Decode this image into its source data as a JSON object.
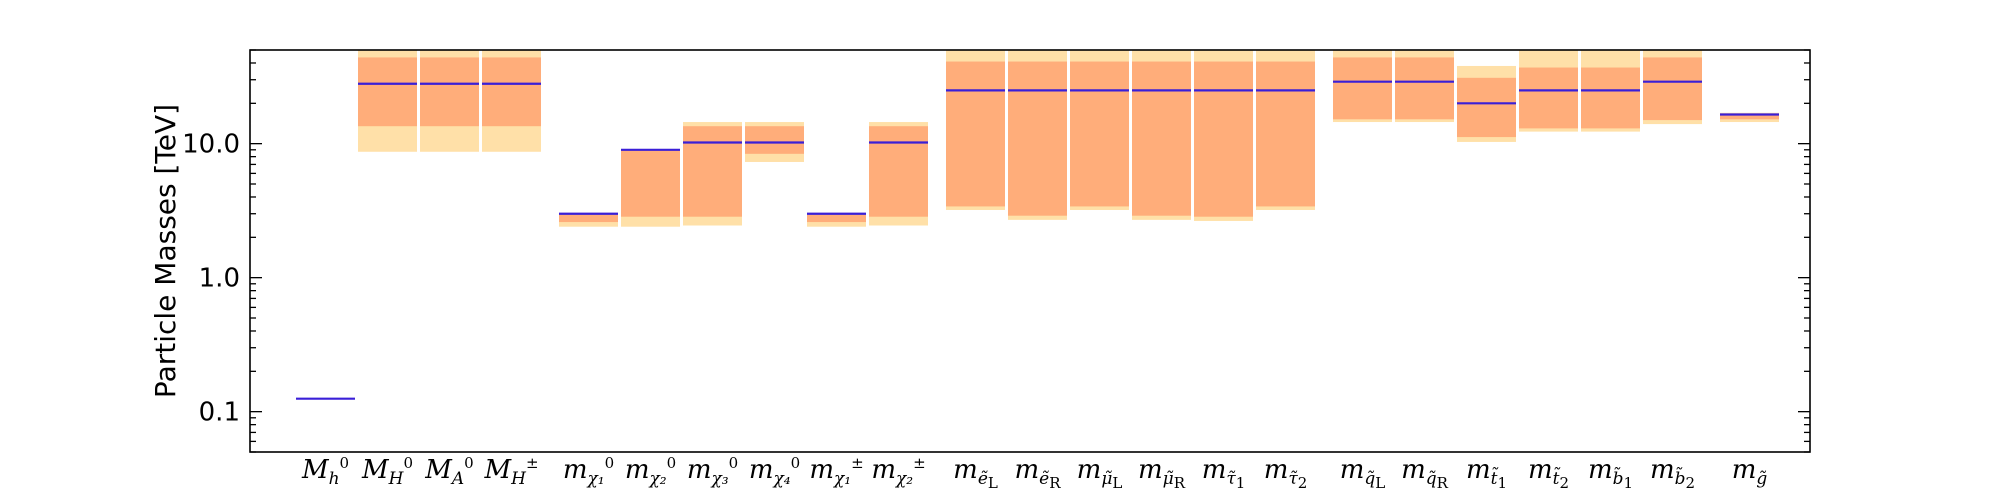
{
  "chart_data": {
    "type": "bar",
    "ylabel": "Particle Masses [TeV]",
    "yscale": "log",
    "ylim": [
      0.05,
      50
    ],
    "yticks": [
      {
        "value": 0.1,
        "label": "0.1"
      },
      {
        "value": 1.0,
        "label": "1.0"
      },
      {
        "value": 10.0,
        "label": "10.0"
      }
    ],
    "grid": false,
    "colors": {
      "outer_band": "#ffe0a8",
      "inner_band": "#ffad7a",
      "central_line": "#3a1fd8",
      "axis": "#000000"
    },
    "categories": [
      {
        "label": {
          "main": "M",
          "sub": "h",
          "sup": "0"
        },
        "group": 0,
        "outer": null,
        "inner": null,
        "central": 0.125
      },
      {
        "label": {
          "main": "M",
          "sub": "H",
          "sup": "0"
        },
        "group": 0,
        "outer": [
          8.7,
          50
        ],
        "inner": [
          13.5,
          44
        ],
        "central": 28
      },
      {
        "label": {
          "main": "M",
          "sub": "A",
          "sup": "0"
        },
        "group": 0,
        "outer": [
          8.7,
          50
        ],
        "inner": [
          13.5,
          44
        ],
        "central": 28
      },
      {
        "label": {
          "main": "M",
          "sub": "H",
          "sup": "±"
        },
        "group": 0,
        "outer": [
          8.7,
          50
        ],
        "inner": [
          13.5,
          44
        ],
        "central": 28
      },
      {
        "label": {
          "main": "m",
          "sub": "χ₁",
          "sup": "0"
        },
        "group": 1,
        "outer": [
          2.4,
          3.05
        ],
        "inner": [
          2.6,
          2.95
        ],
        "central": 3.0
      },
      {
        "label": {
          "main": "m",
          "sub": "χ₂",
          "sup": "0"
        },
        "group": 1,
        "outer": [
          2.4,
          9.1
        ],
        "inner": [
          2.85,
          9.0
        ],
        "central": 9.0
      },
      {
        "label": {
          "main": "m",
          "sub": "χ₃",
          "sup": "0"
        },
        "group": 1,
        "outer": [
          2.45,
          14.5
        ],
        "inner": [
          2.85,
          13.5
        ],
        "central": 10.2
      },
      {
        "label": {
          "main": "m",
          "sub": "χ₄",
          "sup": "0"
        },
        "group": 1,
        "outer": [
          7.3,
          14.5
        ],
        "inner": [
          8.4,
          13.5
        ],
        "central": 10.2
      },
      {
        "label": {
          "main": "m",
          "sub": "χ₁",
          "sup": "±"
        },
        "group": 1,
        "outer": [
          2.4,
          3.05
        ],
        "inner": [
          2.6,
          2.95
        ],
        "central": 3.0
      },
      {
        "label": {
          "main": "m",
          "sub": "χ₂",
          "sup": "±"
        },
        "group": 1,
        "outer": [
          2.45,
          14.5
        ],
        "inner": [
          2.85,
          13.5
        ],
        "central": 10.2
      },
      {
        "label": {
          "main": "m",
          "sub": "ẽ",
          "subsub": "L"
        },
        "group": 2,
        "outer": [
          3.2,
          50
        ],
        "inner": [
          3.4,
          41
        ],
        "central": 25
      },
      {
        "label": {
          "main": "m",
          "sub": "ẽ",
          "subsub": "R"
        },
        "group": 2,
        "outer": [
          2.7,
          50
        ],
        "inner": [
          2.9,
          41
        ],
        "central": 25
      },
      {
        "label": {
          "main": "m",
          "sub": "μ̃",
          "subsub": "L"
        },
        "group": 2,
        "outer": [
          3.2,
          50
        ],
        "inner": [
          3.4,
          41
        ],
        "central": 25
      },
      {
        "label": {
          "main": "m",
          "sub": "μ̃",
          "subsub": "R"
        },
        "group": 2,
        "outer": [
          2.7,
          50
        ],
        "inner": [
          2.9,
          41
        ],
        "central": 25
      },
      {
        "label": {
          "main": "m",
          "sub": "τ̃",
          "subsub": "1"
        },
        "group": 2,
        "outer": [
          2.65,
          50
        ],
        "inner": [
          2.85,
          41
        ],
        "central": 25
      },
      {
        "label": {
          "main": "m",
          "sub": "τ̃",
          "subsub": "2"
        },
        "group": 2,
        "outer": [
          3.2,
          50
        ],
        "inner": [
          3.4,
          41
        ],
        "central": 25
      },
      {
        "label": {
          "main": "m",
          "sub": "q̃",
          "subsub": "L"
        },
        "group": 3,
        "outer": [
          14.5,
          50
        ],
        "inner": [
          15.2,
          44
        ],
        "central": 29
      },
      {
        "label": {
          "main": "m",
          "sub": "q̃",
          "subsub": "R"
        },
        "group": 3,
        "outer": [
          14.5,
          50
        ],
        "inner": [
          15.2,
          44
        ],
        "central": 29
      },
      {
        "label": {
          "main": "m",
          "sub": "t̃",
          "subsub": "1"
        },
        "group": 3,
        "outer": [
          10.3,
          38
        ],
        "inner": [
          11.2,
          31
        ],
        "central": 20
      },
      {
        "label": {
          "main": "m",
          "sub": "t̃",
          "subsub": "2"
        },
        "group": 3,
        "outer": [
          12.3,
          50
        ],
        "inner": [
          13.0,
          37
        ],
        "central": 25
      },
      {
        "label": {
          "main": "m",
          "sub": "b̃",
          "subsub": "1"
        },
        "group": 3,
        "outer": [
          12.3,
          50
        ],
        "inner": [
          13.0,
          37
        ],
        "central": 25
      },
      {
        "label": {
          "main": "m",
          "sub": "b̃",
          "subsub": "2"
        },
        "group": 3,
        "outer": [
          14.0,
          50
        ],
        "inner": [
          15.0,
          44
        ],
        "central": 29
      },
      {
        "label": {
          "main": "m",
          "sub": "g̃"
        },
        "group": 4,
        "outer": [
          14.5,
          17.0
        ],
        "inner": [
          15.2,
          16.4
        ],
        "central": 16.5
      }
    ]
  }
}
